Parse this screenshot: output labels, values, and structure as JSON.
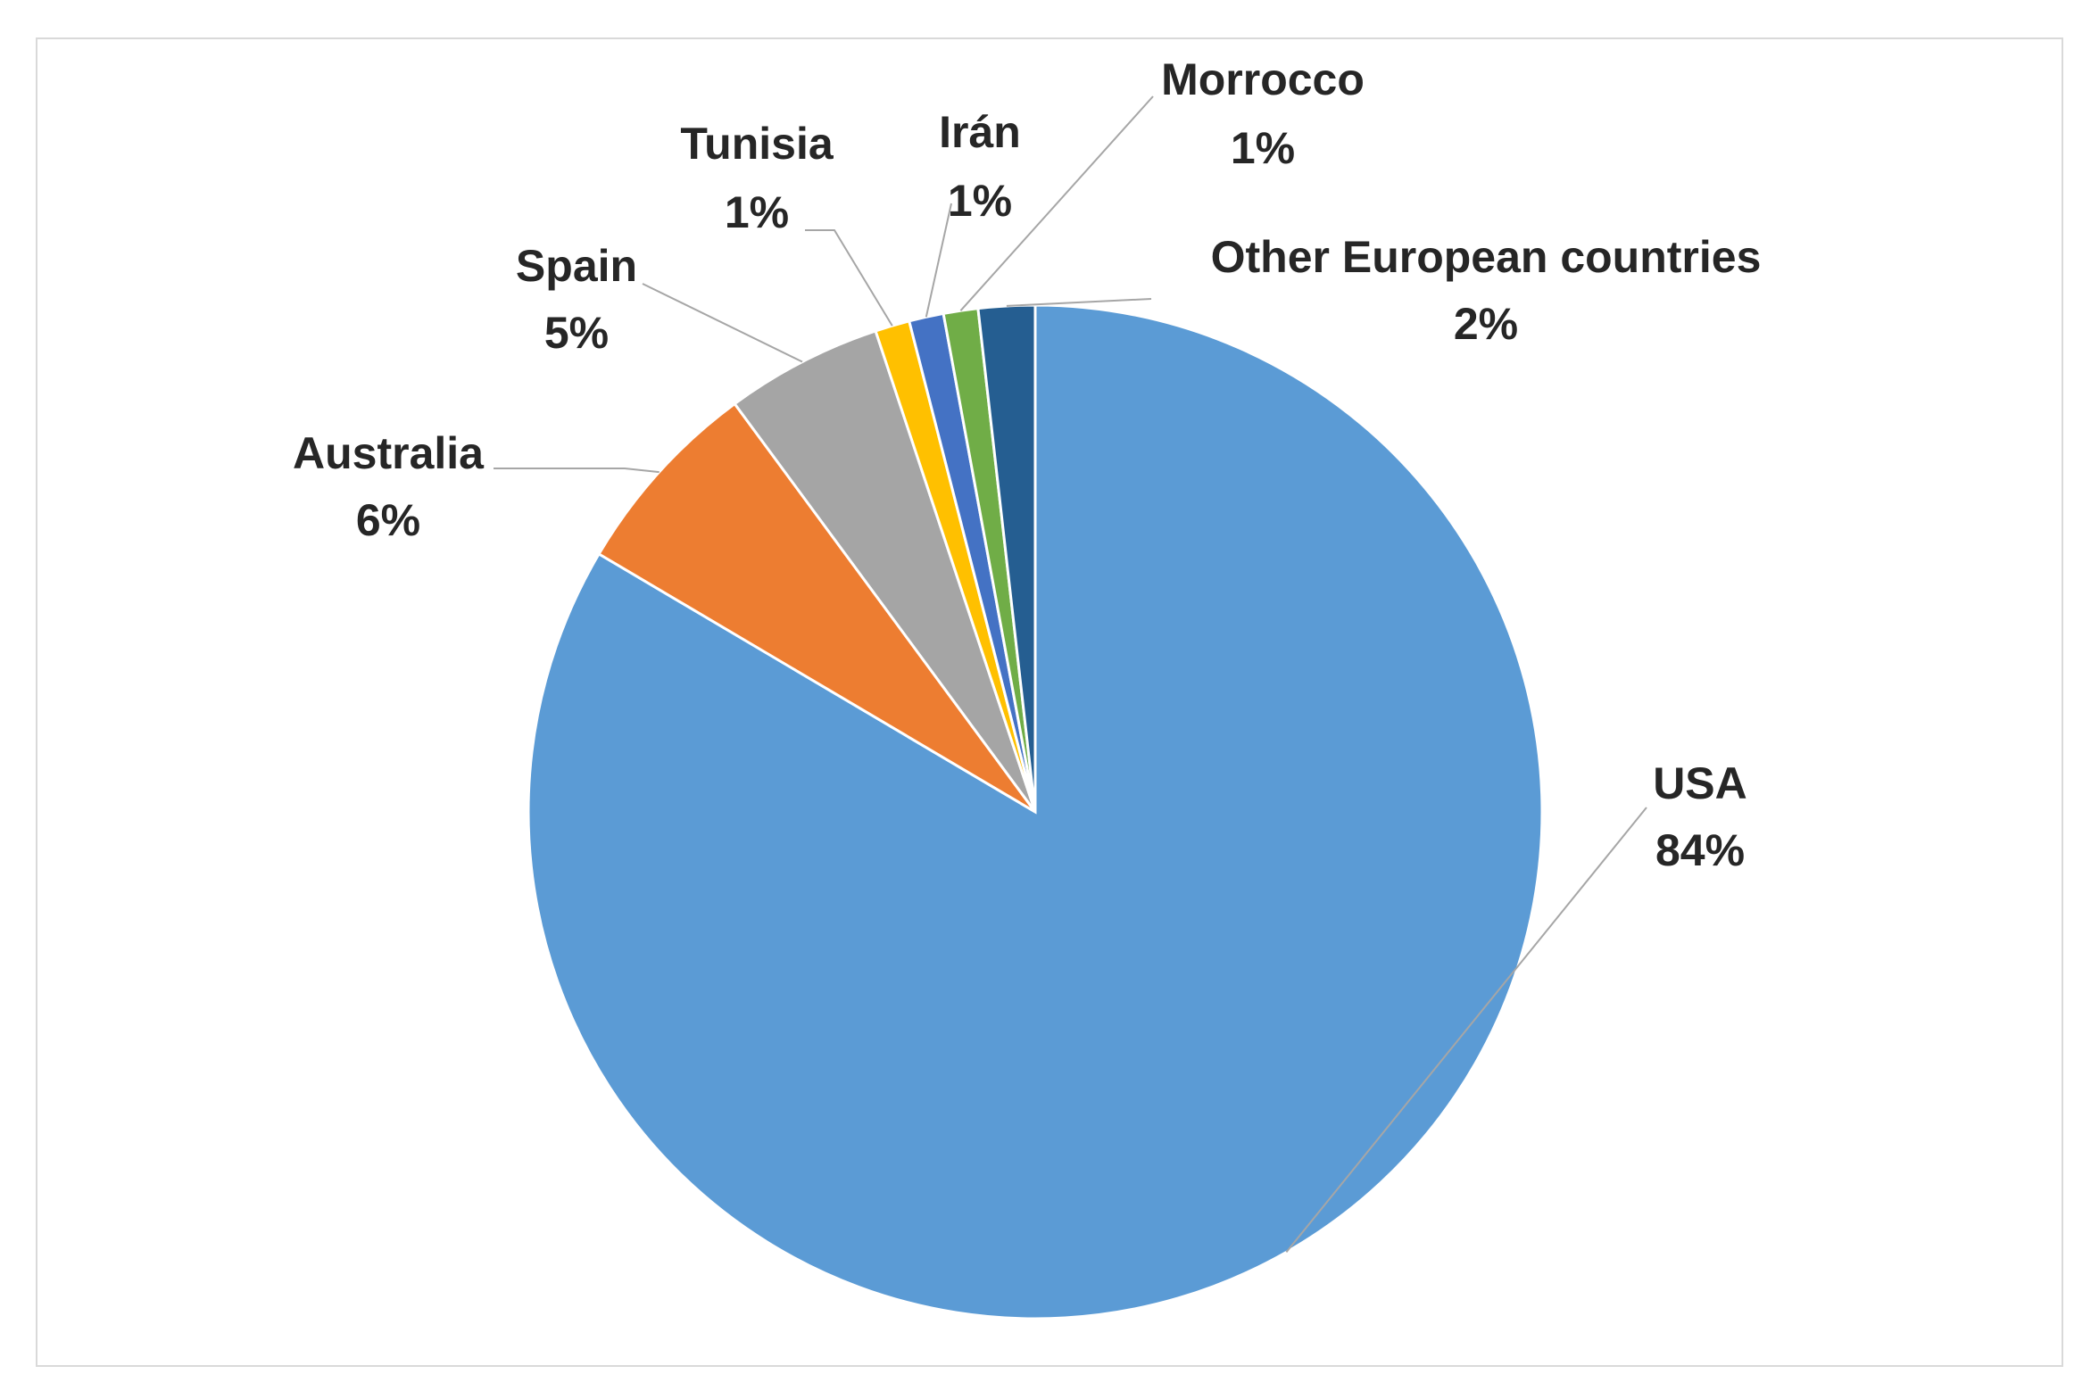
{
  "chart_data": {
    "type": "pie",
    "title": "",
    "start_angle": "12 o'clock, clockwise",
    "label_style": "outside with leader lines",
    "slices": [
      {
        "name": "USA",
        "label": "USA",
        "percent_label": "84%",
        "value": 83.5,
        "color": "#5B9BD5"
      },
      {
        "name": "Australia",
        "label": "Australia",
        "percent_label": "6%",
        "value": 6.4,
        "color": "#ED7D31"
      },
      {
        "name": "Spain",
        "label": "Spain",
        "percent_label": "5%",
        "value": 5.0,
        "color": "#A5A5A5"
      },
      {
        "name": "Tunisia",
        "label": "Tunisia",
        "percent_label": "1%",
        "value": 1.1,
        "color": "#FFC000"
      },
      {
        "name": "Irán",
        "label": "Irán",
        "percent_label": "1%",
        "value": 1.1,
        "color": "#4472C4"
      },
      {
        "name": "Morrocco",
        "label": "Morrocco",
        "percent_label": "1%",
        "value": 1.1,
        "color": "#70AD47"
      },
      {
        "name": "Other European countries",
        "label": "Other European countries",
        "percent_label": "2%",
        "value": 1.8,
        "color": "#255E91"
      }
    ],
    "legend": "none"
  }
}
